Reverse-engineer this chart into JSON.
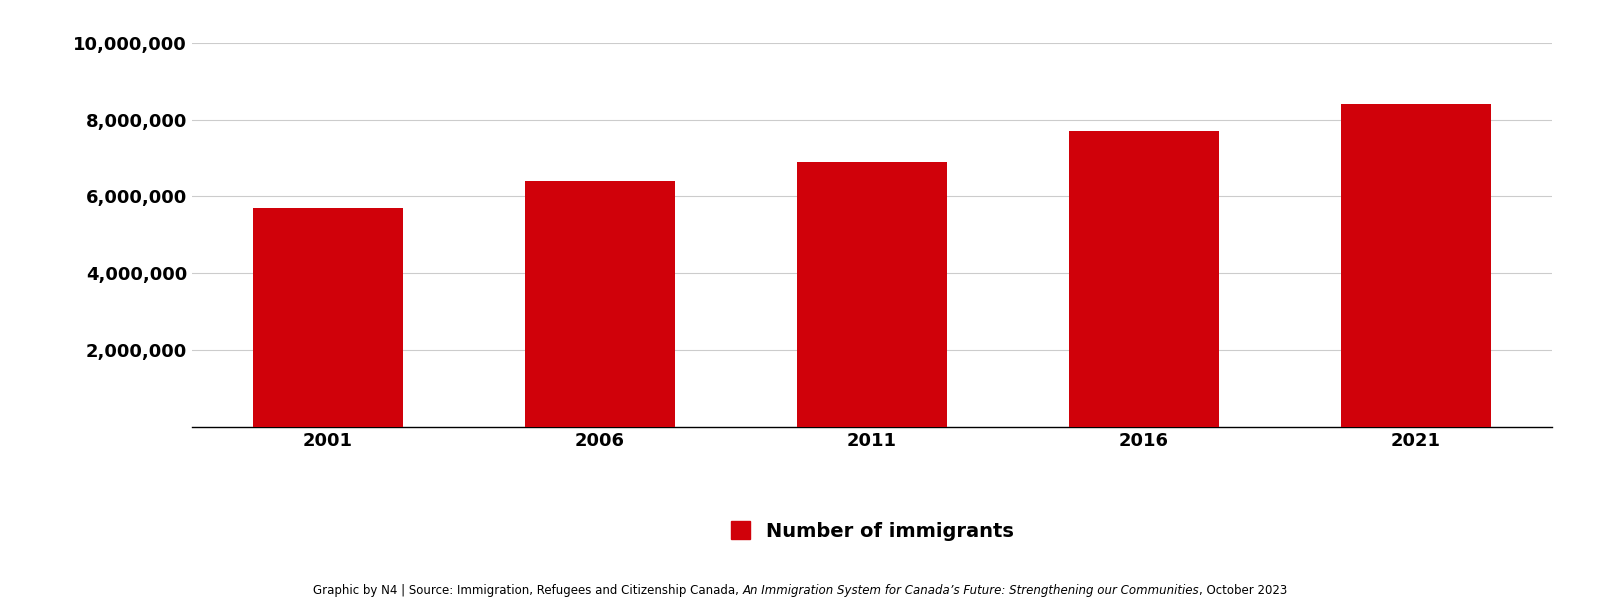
{
  "years": [
    "2001",
    "2006",
    "2011",
    "2016",
    "2021"
  ],
  "values": [
    5700000,
    6400000,
    6900000,
    7700000,
    8400000
  ],
  "bar_color": "#D0010A",
  "background_color": "#ffffff",
  "ylim": [
    0,
    10000000
  ],
  "yticks": [
    2000000,
    4000000,
    6000000,
    8000000,
    10000000
  ],
  "legend_label": "Number of immigrants",
  "legend_marker_color": "#D0010A",
  "footer_text_plain": "Graphic by N4 | Source: Immigration, Refugees and Citizenship Canada, ",
  "footer_text_italic": "An Immigration System for Canada’s Future: Strengthening our Communities",
  "footer_text_end": ", October 2023",
  "grid_color": "#cccccc",
  "tick_fontsize": 13,
  "legend_fontsize": 14,
  "footer_fontsize": 8.5
}
